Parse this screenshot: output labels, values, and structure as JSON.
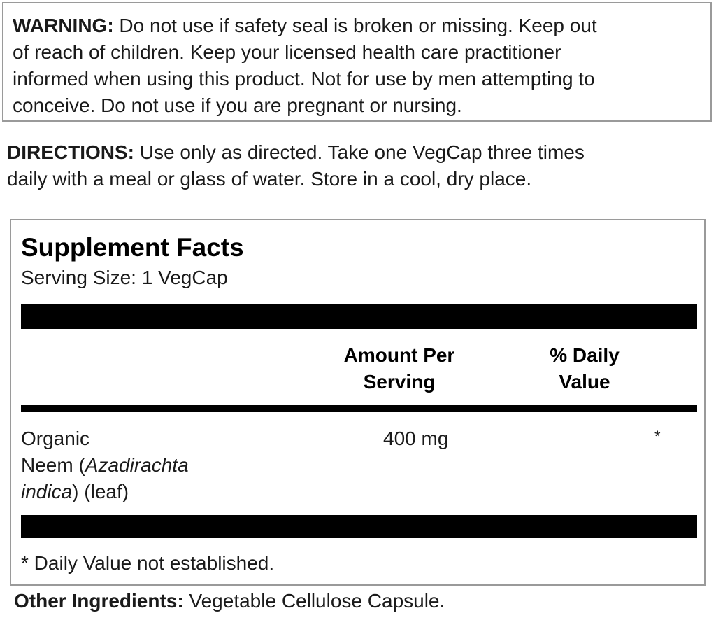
{
  "warning": {
    "label": "WARNING:",
    "lines": [
      " Do not use if safety seal is broken or missing. Keep out",
      "of reach of children. Keep your licensed health care practitioner",
      "informed when using this product. Not for use by men attempting to",
      "conceive. Do not use if you are pregnant or nursing."
    ]
  },
  "directions": {
    "label": "DIRECTIONS:",
    "lines": [
      " Use only as directed. Take one VegCap three times",
      "daily with a meal or glass of water.  Store in a cool, dry place."
    ]
  },
  "facts": {
    "title": "Supplement Facts",
    "serving_size": "Serving Size: 1 VegCap",
    "headers": {
      "amount_line1": "Amount Per",
      "amount_line2": "Serving",
      "dv_line1": "% Daily",
      "dv_line2": "Value"
    },
    "rows": [
      {
        "name_line1": "Organic",
        "name_line2": "Neem (",
        "name_italic1": "Azadirachta",
        "name_italic2": "indica",
        "name_line3": ")  (leaf)",
        "amount": "400 mg",
        "dv": "*"
      }
    ],
    "footnote": "* Daily Value not established."
  },
  "other_ingredients": {
    "label": "Other Ingredients:",
    "value": " Vegetable Cellulose Capsule."
  }
}
